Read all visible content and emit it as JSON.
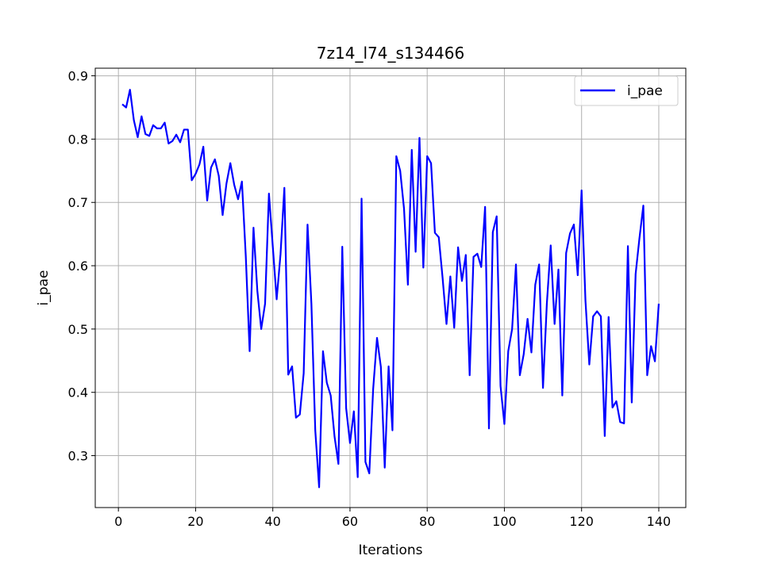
{
  "chart_data": {
    "type": "line",
    "title": "7z14_l74_s134466",
    "xlabel": "Iterations",
    "ylabel": "i_pae",
    "xlim": [
      -6,
      147
    ],
    "ylim": [
      0.218,
      0.912
    ],
    "xticks": [
      0,
      20,
      40,
      60,
      80,
      100,
      120,
      140
    ],
    "yticks": [
      0.3,
      0.4,
      0.5,
      0.6,
      0.7,
      0.8,
      0.9
    ],
    "grid": true,
    "legend_position": "top-right",
    "series": [
      {
        "name": "i_pae",
        "color": "#0000ff",
        "x": [
          1,
          2,
          3,
          4,
          5,
          6,
          7,
          8,
          9,
          10,
          11,
          12,
          13,
          14,
          15,
          16,
          17,
          18,
          19,
          20,
          21,
          22,
          23,
          24,
          25,
          26,
          27,
          28,
          29,
          30,
          31,
          32,
          33,
          34,
          35,
          36,
          37,
          38,
          39,
          40,
          41,
          42,
          43,
          44,
          45,
          46,
          47,
          48,
          49,
          50,
          51,
          52,
          53,
          54,
          55,
          56,
          57,
          58,
          59,
          60,
          61,
          62,
          63,
          64,
          65,
          66,
          67,
          68,
          69,
          70,
          71,
          72,
          73,
          74,
          75,
          76,
          77,
          78,
          79,
          80,
          81,
          82,
          83,
          84,
          85,
          86,
          87,
          88,
          89,
          90,
          91,
          92,
          93,
          94,
          95,
          96,
          97,
          98,
          99,
          100,
          101,
          102,
          103,
          104,
          105,
          106,
          107,
          108,
          109,
          110,
          111,
          112,
          113,
          114,
          115,
          116,
          117,
          118,
          119,
          120,
          121,
          122,
          123,
          124,
          125,
          126,
          127,
          128,
          129,
          130,
          131,
          132,
          133,
          134,
          135,
          136,
          137,
          138,
          139,
          140
        ],
        "y": [
          0.855,
          0.85,
          0.878,
          0.83,
          0.803,
          0.836,
          0.808,
          0.805,
          0.822,
          0.817,
          0.817,
          0.826,
          0.793,
          0.797,
          0.807,
          0.795,
          0.815,
          0.815,
          0.735,
          0.745,
          0.76,
          0.788,
          0.703,
          0.755,
          0.768,
          0.742,
          0.68,
          0.73,
          0.762,
          0.728,
          0.705,
          0.733,
          0.615,
          0.465,
          0.66,
          0.56,
          0.5,
          0.54,
          0.714,
          0.63,
          0.547,
          0.618,
          0.723,
          0.428,
          0.441,
          0.36,
          0.365,
          0.43,
          0.665,
          0.54,
          0.34,
          0.25,
          0.465,
          0.415,
          0.395,
          0.33,
          0.287,
          0.63,
          0.375,
          0.32,
          0.37,
          0.266,
          0.706,
          0.29,
          0.272,
          0.405,
          0.486,
          0.44,
          0.281,
          0.441,
          0.34,
          0.773,
          0.75,
          0.69,
          0.57,
          0.783,
          0.622,
          0.802,
          0.597,
          0.773,
          0.762,
          0.652,
          0.645,
          0.58,
          0.508,
          0.583,
          0.502,
          0.629,
          0.576,
          0.617,
          0.427,
          0.614,
          0.619,
          0.598,
          0.693,
          0.343,
          0.653,
          0.678,
          0.41,
          0.35,
          0.465,
          0.5,
          0.602,
          0.427,
          0.46,
          0.516,
          0.463,
          0.57,
          0.602,
          0.407,
          0.54,
          0.632,
          0.508,
          0.594,
          0.395,
          0.62,
          0.651,
          0.665,
          0.585,
          0.719,
          0.545,
          0.444,
          0.52,
          0.528,
          0.52,
          0.331,
          0.519,
          0.376,
          0.386,
          0.353,
          0.351,
          0.631,
          0.384,
          0.587,
          0.644,
          0.695,
          0.427,
          0.473,
          0.449,
          0.54
        ]
      }
    ]
  }
}
